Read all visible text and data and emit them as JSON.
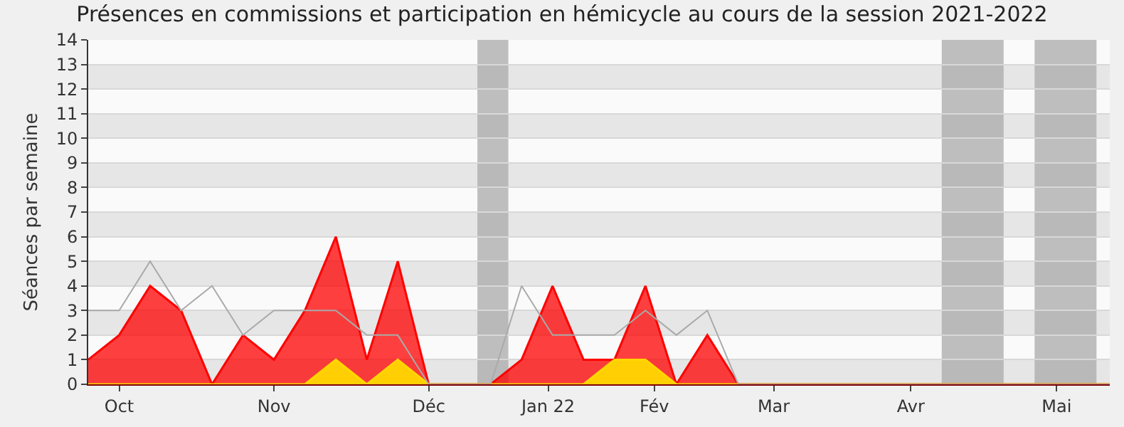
{
  "chart_data": {
    "type": "area",
    "title": "Présences en commissions et participation en hémicycle au cours de la session 2021-2022",
    "ylabel": "Séances par semaine",
    "x": [
      "2021-09-27",
      "2021-10-04",
      "2021-10-11",
      "2021-10-18",
      "2021-10-25",
      "2021-11-01",
      "2021-11-08",
      "2021-11-15",
      "2021-11-22",
      "2021-11-29",
      "2021-12-06",
      "2021-12-13",
      "2021-12-20",
      "2021-12-27",
      "2022-01-03",
      "2022-01-10",
      "2022-01-17",
      "2022-01-24",
      "2022-01-31",
      "2022-02-07",
      "2022-02-14",
      "2022-02-21",
      "2022-02-28",
      "2022-03-07",
      "2022-03-14",
      "2022-03-21",
      "2022-03-28",
      "2022-04-04",
      "2022-04-11",
      "2022-04-18",
      "2022-04-25",
      "2022-05-02",
      "2022-05-09",
      "2022-05-16"
    ],
    "series": [
      {
        "color": "#ff0000",
        "values": [
          1,
          2,
          4,
          3,
          0,
          2,
          1,
          3,
          6,
          1,
          5,
          0,
          0,
          0,
          1,
          4,
          1,
          1,
          4,
          0,
          2,
          0,
          0,
          0,
          0,
          0,
          0,
          0,
          0,
          0,
          0,
          0,
          0,
          0
        ]
      },
      {
        "color": "#ffd700",
        "values": [
          0,
          0,
          0,
          0,
          0,
          0,
          0,
          0,
          1,
          0,
          1,
          0,
          0,
          0,
          0,
          0,
          0,
          1,
          1,
          0,
          0,
          0,
          0,
          0,
          0,
          0,
          0,
          0,
          0,
          0,
          0,
          0,
          0,
          0
        ]
      },
      {
        "type": "line",
        "color": "#aaaaaa",
        "values": [
          3,
          3,
          5,
          3,
          4,
          2,
          3,
          3,
          3,
          2,
          2,
          0,
          0,
          0,
          4,
          2,
          2,
          2,
          3,
          2,
          3,
          0,
          0,
          0,
          0,
          0,
          0,
          0,
          0,
          0,
          0,
          0,
          0,
          0
        ]
      }
    ],
    "xlim": [
      "2021-09-27",
      "2022-05-16"
    ],
    "xticks": [
      {
        "value": "2021-10-04",
        "label": "Oct"
      },
      {
        "value": "2021-11-08",
        "label": "Nov"
      },
      {
        "value": "2021-12-13",
        "label": "Déc"
      },
      {
        "value": "2022-01-09",
        "label": "Jan 22"
      },
      {
        "value": "2022-02-02",
        "label": "Fév"
      },
      {
        "value": "2022-03-01",
        "label": "Mar"
      },
      {
        "value": "2022-04-01",
        "label": "Avr"
      },
      {
        "value": "2022-05-04",
        "label": "Mai"
      }
    ],
    "ylim": [
      0,
      14
    ],
    "yticks": [
      0,
      1,
      2,
      3,
      4,
      5,
      6,
      7,
      8,
      9,
      10,
      11,
      12,
      13,
      14
    ],
    "bands": [
      {
        "axis": "x",
        "from": "2021-12-24",
        "to": "2021-12-31",
        "color": "#aaaaaa"
      },
      {
        "axis": "x",
        "from": "2022-04-08",
        "to": "2022-04-22",
        "color": "#aaaaaa"
      },
      {
        "axis": "x",
        "from": "2022-04-29",
        "to": "2022-05-13",
        "color": "#aaaaaa"
      }
    ],
    "grid": "y",
    "marker": "none",
    "line_style": "solid"
  }
}
